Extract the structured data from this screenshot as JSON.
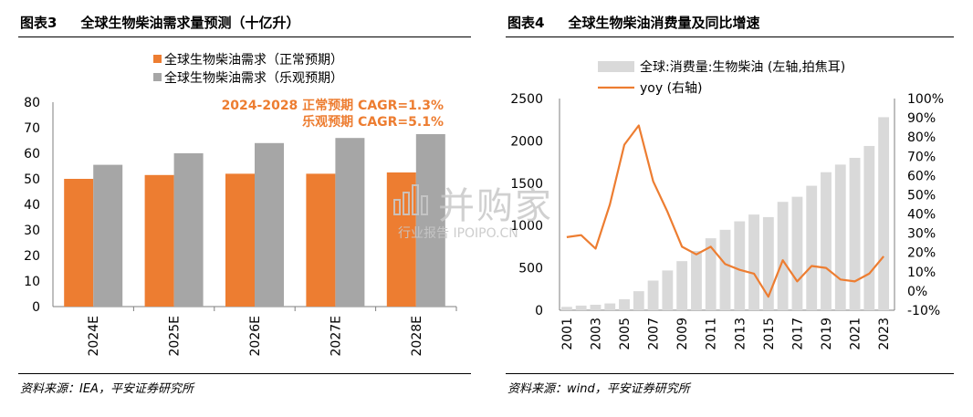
{
  "left": {
    "fig_label": "图表3",
    "title": "全球生物柴油需求量预测（十亿升）",
    "source": "资料来源：IEA，平安证券研究所",
    "annotation_line1": "2024-2028 正常预期 CAGR=1.3%",
    "annotation_line2": "乐观预期 CAGR=5.1%",
    "accent_color": "#ED7D31",
    "gray_color": "#A6A6A6"
  },
  "right": {
    "fig_label": "图表4",
    "title": "全球生物柴油消费量及同比增速",
    "source": "资料来源：wind，平安证券研究所",
    "bar_color": "#D9D9D9",
    "line_color": "#ED7D31"
  },
  "watermark": {
    "main": "并购家",
    "sub": "行业报告 IPOIPO.CN"
  },
  "chart_data": [
    {
      "type": "bar",
      "categories": [
        "2024E",
        "2025E",
        "2026E",
        "2027E",
        "2028E"
      ],
      "series": [
        {
          "name": "全球生物柴油需求（正常预期）",
          "color": "#ED7D31",
          "values": [
            50,
            51.5,
            52,
            52,
            52.5
          ]
        },
        {
          "name": "全球生物柴油需求（乐观预期）",
          "color": "#A6A6A6",
          "values": [
            55.5,
            60,
            64,
            66,
            67.5
          ]
        }
      ],
      "ylim": [
        0,
        80
      ],
      "yticks": [
        0,
        10,
        20,
        30,
        40,
        50,
        60,
        70,
        80
      ],
      "legend_position": "top"
    },
    {
      "type": "bar",
      "categories": [
        "2001",
        "2002",
        "2003",
        "2004",
        "2005",
        "2006",
        "2007",
        "2008",
        "2009",
        "2010",
        "2011",
        "2012",
        "2013",
        "2014",
        "2015",
        "2016",
        "2017",
        "2018",
        "2019",
        "2020",
        "2021",
        "2022",
        "2023"
      ],
      "xtick_labels": [
        "2001",
        "2003",
        "2005",
        "2007",
        "2009",
        "2011",
        "2013",
        "2015",
        "2017",
        "2019",
        "2021",
        "2023"
      ],
      "series": [
        {
          "name": "全球:消费量:生物柴油 (左轴,拍焦耳)",
          "type": "bar",
          "axis": "left",
          "color": "#D9D9D9",
          "values": [
            40,
            55,
            65,
            80,
            130,
            225,
            350,
            470,
            580,
            700,
            850,
            950,
            1050,
            1130,
            1100,
            1280,
            1340,
            1470,
            1630,
            1720,
            1800,
            1940,
            2280
          ]
        },
        {
          "name": "yoy (右轴)",
          "type": "line",
          "axis": "right",
          "color": "#ED7D31",
          "values": [
            0.28,
            0.29,
            0.22,
            0.45,
            0.76,
            0.86,
            0.57,
            0.41,
            0.23,
            0.19,
            0.23,
            0.14,
            0.11,
            0.09,
            -0.03,
            0.16,
            0.05,
            0.13,
            0.12,
            0.06,
            0.05,
            0.09,
            0.18
          ]
        }
      ],
      "ylim_left": [
        0,
        2500
      ],
      "yticks_left": [
        0,
        500,
        1000,
        1500,
        2000,
        2500
      ],
      "ylim_right": [
        -0.1,
        1.0
      ],
      "yticks_right": [
        "-10%",
        "0%",
        "10%",
        "20%",
        "30%",
        "40%",
        "50%",
        "60%",
        "70%",
        "80%",
        "90%",
        "100%"
      ],
      "legend_position": "top"
    }
  ]
}
